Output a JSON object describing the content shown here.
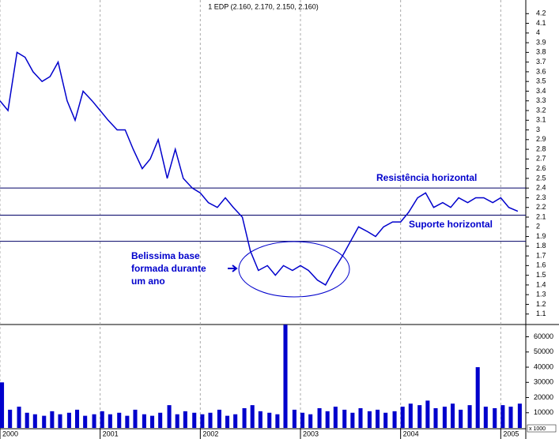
{
  "chart_data": [
    {
      "type": "line",
      "title": "1 EDP (2.160, 2.170, 2.150, 2.160)",
      "x": [
        2000.0,
        2000.08,
        2000.17,
        2000.25,
        2000.33,
        2000.42,
        2000.5,
        2000.58,
        2000.67,
        2000.75,
        2000.83,
        2000.92,
        2001.0,
        2001.08,
        2001.17,
        2001.25,
        2001.33,
        2001.42,
        2001.5,
        2001.58,
        2001.67,
        2001.75,
        2001.83,
        2001.92,
        2002.0,
        2002.08,
        2002.17,
        2002.25,
        2002.33,
        2002.42,
        2002.5,
        2002.58,
        2002.67,
        2002.75,
        2002.83,
        2002.92,
        2003.0,
        2003.08,
        2003.17,
        2003.25,
        2003.33,
        2003.42,
        2003.5,
        2003.58,
        2003.67,
        2003.75,
        2003.83,
        2003.92,
        2004.0,
        2004.08,
        2004.17,
        2004.25,
        2004.33,
        2004.42,
        2004.5,
        2004.58,
        2004.67,
        2004.75,
        2004.83,
        2004.92,
        2005.0,
        2005.08,
        2005.17
      ],
      "series": [
        {
          "color": "#0000cc",
          "values": [
            3.3,
            3.2,
            3.8,
            3.75,
            3.6,
            3.5,
            3.55,
            3.7,
            3.3,
            3.1,
            3.4,
            3.3,
            3.2,
            3.1,
            3.0,
            3.0,
            2.8,
            2.6,
            2.7,
            2.9,
            2.5,
            2.8,
            2.5,
            2.4,
            2.35,
            2.25,
            2.2,
            2.3,
            2.2,
            2.1,
            1.75,
            1.55,
            1.6,
            1.5,
            1.6,
            1.55,
            1.6,
            1.55,
            1.45,
            1.4,
            1.55,
            1.7,
            1.85,
            2.0,
            1.95,
            1.9,
            2.0,
            2.05,
            2.05,
            2.15,
            2.3,
            2.35,
            2.2,
            2.25,
            2.2,
            2.3,
            2.25,
            2.3,
            2.3,
            2.25,
            2.3,
            2.2,
            2.16
          ]
        }
      ],
      "xlim": [
        2000,
        2005.25
      ],
      "xticks": [
        2000,
        2001,
        2002,
        2003,
        2004,
        2005
      ],
      "ylim": [
        1.0,
        4.3
      ],
      "yticks": [
        1.1,
        1.2,
        1.3,
        1.4,
        1.5,
        1.6,
        1.7,
        1.8,
        1.9,
        2.0,
        2.1,
        2.2,
        2.3,
        2.4,
        2.5,
        2.6,
        2.7,
        2.8,
        2.9,
        3.0,
        3.1,
        3.2,
        3.3,
        3.4,
        3.5,
        3.6,
        3.7,
        3.8,
        3.9,
        4.0,
        4.1,
        4.2
      ],
      "hlines": [
        2.4,
        2.12,
        1.85
      ],
      "annotations": [
        "Resistência horizontal",
        "Suporte horizontal",
        "Belissima base",
        "formada durante",
        "um ano"
      ]
    },
    {
      "type": "bar",
      "x": [
        2000.0,
        2000.08,
        2000.17,
        2000.25,
        2000.33,
        2000.42,
        2000.5,
        2000.58,
        2000.67,
        2000.75,
        2000.83,
        2000.92,
        2001.0,
        2001.08,
        2001.17,
        2001.25,
        2001.33,
        2001.42,
        2001.5,
        2001.58,
        2001.67,
        2001.75,
        2001.83,
        2001.92,
        2002.0,
        2002.08,
        2002.17,
        2002.25,
        2002.33,
        2002.42,
        2002.5,
        2002.58,
        2002.67,
        2002.75,
        2002.83,
        2002.92,
        2003.0,
        2003.08,
        2003.17,
        2003.25,
        2003.33,
        2003.42,
        2003.5,
        2003.58,
        2003.67,
        2003.75,
        2003.83,
        2003.92,
        2004.0,
        2004.08,
        2004.17,
        2004.25,
        2004.33,
        2004.42,
        2004.5,
        2004.58,
        2004.67,
        2004.75,
        2004.83,
        2004.92,
        2005.0,
        2005.08,
        2005.17
      ],
      "values": [
        30000,
        12000,
        14000,
        10000,
        9000,
        8000,
        11000,
        9000,
        10000,
        12000,
        8000,
        9000,
        11000,
        9000,
        10000,
        8000,
        12000,
        9000,
        8000,
        10000,
        15000,
        9000,
        11000,
        10000,
        9000,
        10000,
        12000,
        8000,
        9000,
        13000,
        15000,
        11000,
        10000,
        9000,
        68000,
        12000,
        10000,
        9000,
        13000,
        11000,
        14000,
        12000,
        10000,
        13000,
        11000,
        12000,
        10000,
        11000,
        14000,
        16000,
        15000,
        18000,
        13000,
        14000,
        16000,
        12000,
        15000,
        40000,
        14000,
        13000,
        15000,
        14000,
        16000
      ],
      "color": "#0000cc",
      "ylim": [
        0,
        66000
      ],
      "yticks": [
        10000,
        20000,
        30000,
        40000,
        50000,
        60000
      ],
      "unit_label": "x 1000"
    }
  ]
}
